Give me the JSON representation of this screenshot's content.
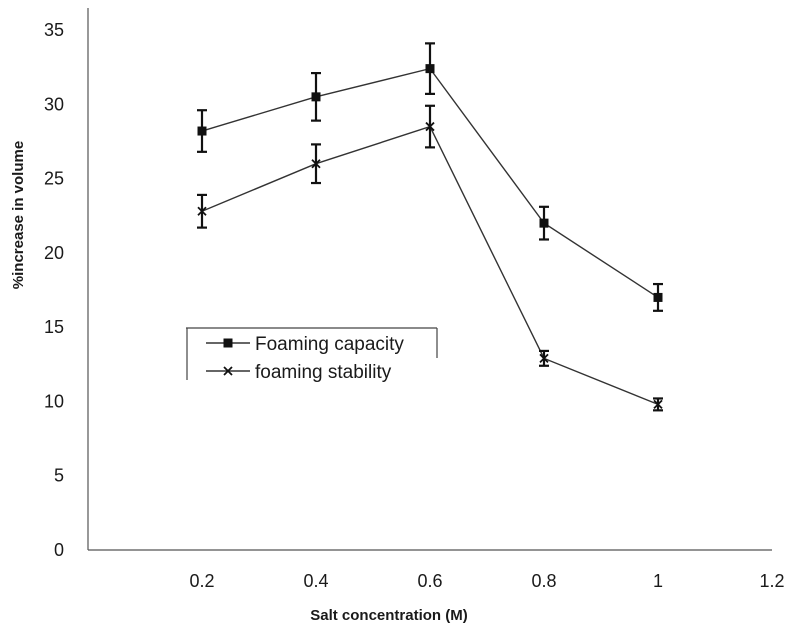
{
  "chart_data": {
    "type": "line",
    "xlabel": "Salt concentration (M)",
    "ylabel": "%increase in volume",
    "xlim": [
      0,
      1.2
    ],
    "ylim": [
      0,
      35
    ],
    "x_ticks": [
      "0.2",
      "0.4",
      "0.6",
      "0.8",
      "1",
      "1.2"
    ],
    "y_ticks": [
      "0",
      "5",
      "10",
      "15",
      "20",
      "25",
      "30",
      "35"
    ],
    "x": [
      0.2,
      0.4,
      0.6,
      0.8,
      1.0
    ],
    "grid": false,
    "legend_position": "center-left",
    "series": [
      {
        "name": "Foaming capacity",
        "marker": "square",
        "values": [
          28.2,
          30.5,
          32.4,
          22.0,
          17.0
        ],
        "errors": [
          1.4,
          1.6,
          1.7,
          1.1,
          0.9
        ]
      },
      {
        "name": "foaming stability",
        "marker": "x",
        "values": [
          22.8,
          26.0,
          28.5,
          12.9,
          9.8
        ],
        "errors": [
          1.1,
          1.3,
          1.4,
          0.5,
          0.4
        ]
      }
    ]
  }
}
